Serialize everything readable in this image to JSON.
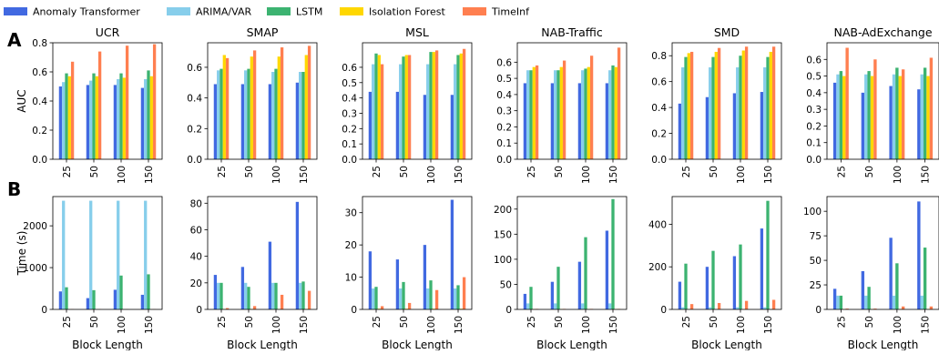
{
  "legend": [
    {
      "name": "Anomaly Transformer",
      "color": "#4169e1"
    },
    {
      "name": "ARIMA/VAR",
      "color": "#87ceeb"
    },
    {
      "name": "LSTM",
      "color": "#3cb371"
    },
    {
      "name": "Isolation Forest",
      "color": "#ffd700"
    },
    {
      "name": "TimeInf",
      "color": "#ff7f50"
    }
  ],
  "row_labels": {
    "A": "A",
    "B": "B"
  },
  "shared": {
    "categories": [
      "25",
      "50",
      "100",
      "150"
    ],
    "xlabel": "Block Length",
    "row_ylabels": [
      "AUC",
      "Time (s)"
    ]
  },
  "chart_data": [
    {
      "type": "bar",
      "row": 0,
      "col": 0,
      "title": "UCR",
      "ylabel": "AUC",
      "ylim": [
        0,
        0.8
      ],
      "yticks": [
        0.0,
        0.2,
        0.4,
        0.6,
        0.8
      ],
      "series": [
        {
          "values": [
            0.5,
            0.51,
            0.51,
            0.49
          ]
        },
        {
          "values": [
            0.53,
            0.54,
            0.55,
            0.55
          ]
        },
        {
          "values": [
            0.59,
            0.59,
            0.59,
            0.61
          ]
        },
        {
          "values": [
            0.57,
            0.57,
            0.56,
            0.57
          ]
        },
        {
          "values": [
            0.67,
            0.74,
            0.78,
            0.79
          ]
        }
      ]
    },
    {
      "type": "bar",
      "row": 0,
      "col": 1,
      "title": "SMAP",
      "ylim": [
        0,
        0.76
      ],
      "yticks": [
        0.0,
        0.2,
        0.4,
        0.6
      ],
      "series": [
        {
          "values": [
            0.49,
            0.49,
            0.49,
            0.5
          ]
        },
        {
          "values": [
            0.58,
            0.58,
            0.57,
            0.57
          ]
        },
        {
          "values": [
            0.59,
            0.59,
            0.59,
            0.57
          ]
        },
        {
          "values": [
            0.68,
            0.67,
            0.67,
            0.68
          ]
        },
        {
          "values": [
            0.66,
            0.71,
            0.73,
            0.74
          ]
        }
      ]
    },
    {
      "type": "bar",
      "row": 0,
      "col": 2,
      "title": "MSL",
      "ylim": [
        0,
        0.76
      ],
      "yticks": [
        0.0,
        0.1,
        0.2,
        0.3,
        0.4,
        0.5,
        0.6
      ],
      "series": [
        {
          "values": [
            0.44,
            0.44,
            0.42,
            0.42
          ]
        },
        {
          "values": [
            0.62,
            0.62,
            0.62,
            0.62
          ]
        },
        {
          "values": [
            0.69,
            0.67,
            0.7,
            0.68
          ]
        },
        {
          "values": [
            0.68,
            0.68,
            0.7,
            0.69
          ]
        },
        {
          "values": [
            0.62,
            0.68,
            0.71,
            0.72
          ]
        }
      ]
    },
    {
      "type": "bar",
      "row": 0,
      "col": 3,
      "title": "NAB-Traffic",
      "ylim": [
        0,
        0.72
      ],
      "yticks": [
        0.0,
        0.1,
        0.2,
        0.3,
        0.4,
        0.5,
        0.6
      ],
      "series": [
        {
          "values": [
            0.47,
            0.47,
            0.47,
            0.47
          ]
        },
        {
          "values": [
            0.55,
            0.55,
            0.55,
            0.55
          ]
        },
        {
          "values": [
            0.55,
            0.55,
            0.56,
            0.58
          ]
        },
        {
          "values": [
            0.57,
            0.57,
            0.57,
            0.57
          ]
        },
        {
          "values": [
            0.58,
            0.61,
            0.64,
            0.69
          ]
        }
      ]
    },
    {
      "type": "bar",
      "row": 0,
      "col": 4,
      "title": "SMD",
      "ylim": [
        0,
        0.9
      ],
      "yticks": [
        0.0,
        0.2,
        0.4,
        0.6,
        0.8
      ],
      "series": [
        {
          "values": [
            0.43,
            0.48,
            0.51,
            0.52
          ]
        },
        {
          "values": [
            0.71,
            0.71,
            0.71,
            0.71
          ]
        },
        {
          "values": [
            0.79,
            0.79,
            0.8,
            0.79
          ]
        },
        {
          "values": [
            0.82,
            0.83,
            0.84,
            0.83
          ]
        },
        {
          "values": [
            0.83,
            0.86,
            0.87,
            0.87
          ]
        }
      ]
    },
    {
      "type": "bar",
      "row": 0,
      "col": 5,
      "title": "NAB-AdExchange",
      "ylim": [
        0,
        0.7
      ],
      "yticks": [
        0.0,
        0.1,
        0.2,
        0.3,
        0.4,
        0.5,
        0.6
      ],
      "series": [
        {
          "values": [
            0.46,
            0.4,
            0.44,
            0.42
          ]
        },
        {
          "values": [
            0.51,
            0.51,
            0.51,
            0.51
          ]
        },
        {
          "values": [
            0.53,
            0.53,
            0.55,
            0.55
          ]
        },
        {
          "values": [
            0.5,
            0.5,
            0.5,
            0.5
          ]
        },
        {
          "values": [
            0.67,
            0.6,
            0.54,
            0.61
          ]
        }
      ]
    },
    {
      "type": "bar",
      "row": 1,
      "col": 0,
      "title": "",
      "ylabel": "Time (s)",
      "ylim": [
        0,
        2700
      ],
      "yticks": [
        0,
        1000,
        2000
      ],
      "series": [
        {
          "values": [
            430,
            270,
            470,
            350
          ]
        },
        {
          "values": [
            2600,
            2600,
            2600,
            2600
          ]
        },
        {
          "values": [
            530,
            460,
            810,
            840
          ]
        },
        {
          "values": [
            2,
            2,
            2,
            2
          ]
        },
        {
          "values": [
            5,
            5,
            5,
            5
          ]
        }
      ]
    },
    {
      "type": "bar",
      "row": 1,
      "col": 1,
      "title": "",
      "ylim": [
        0,
        85
      ],
      "yticks": [
        0,
        20,
        40,
        60,
        80
      ],
      "series": [
        {
          "values": [
            26,
            32,
            51,
            81
          ]
        },
        {
          "values": [
            20,
            20,
            20,
            20
          ]
        },
        {
          "values": [
            20,
            17,
            20,
            21
          ]
        },
        {
          "values": [
            0.3,
            0.3,
            0.3,
            0.3
          ]
        },
        {
          "values": [
            1,
            2.5,
            11,
            14
          ]
        }
      ]
    },
    {
      "type": "bar",
      "row": 1,
      "col": 2,
      "title": "",
      "ylim": [
        0,
        35
      ],
      "yticks": [
        0,
        10,
        20,
        30
      ],
      "series": [
        {
          "values": [
            18,
            15.5,
            20,
            34
          ]
        },
        {
          "values": [
            6.5,
            6.5,
            6.5,
            6.5
          ]
        },
        {
          "values": [
            7,
            8.5,
            9,
            7.5
          ]
        },
        {
          "values": [
            0.2,
            0.2,
            0.2,
            0.2
          ]
        },
        {
          "values": [
            1,
            2,
            6,
            10
          ]
        }
      ]
    },
    {
      "type": "bar",
      "row": 1,
      "col": 3,
      "title": "",
      "ylim": [
        0,
        225
      ],
      "yticks": [
        0,
        50,
        100,
        150,
        200
      ],
      "series": [
        {
          "values": [
            31,
            55,
            95,
            157
          ]
        },
        {
          "values": [
            12,
            12,
            12,
            12
          ]
        },
        {
          "values": [
            45,
            85,
            144,
            220
          ]
        },
        {
          "values": [
            0.5,
            0.5,
            0.5,
            0.5
          ]
        },
        {
          "values": [
            1,
            1,
            1,
            1
          ]
        }
      ]
    },
    {
      "type": "bar",
      "row": 1,
      "col": 4,
      "title": "",
      "ylim": [
        0,
        530
      ],
      "yticks": [
        0,
        200,
        400
      ],
      "series": [
        {
          "values": [
            130,
            200,
            250,
            380
          ]
        },
        {
          "values": [
            10,
            10,
            10,
            10
          ]
        },
        {
          "values": [
            215,
            275,
            305,
            510
          ]
        },
        {
          "values": [
            1,
            1,
            1,
            1
          ]
        },
        {
          "values": [
            25,
            30,
            40,
            45
          ]
        }
      ]
    },
    {
      "type": "bar",
      "row": 1,
      "col": 5,
      "title": "",
      "ylim": [
        0,
        115
      ],
      "yticks": [
        0,
        25,
        50,
        75,
        100
      ],
      "series": [
        {
          "values": [
            21,
            39,
            73,
            110
          ]
        },
        {
          "values": [
            14,
            14,
            14,
            14
          ]
        },
        {
          "values": [
            14,
            23,
            47,
            63
          ]
        },
        {
          "values": [
            0.3,
            0.3,
            0.3,
            0.3
          ]
        },
        {
          "values": [
            0.8,
            0.8,
            3,
            3
          ]
        }
      ]
    }
  ]
}
